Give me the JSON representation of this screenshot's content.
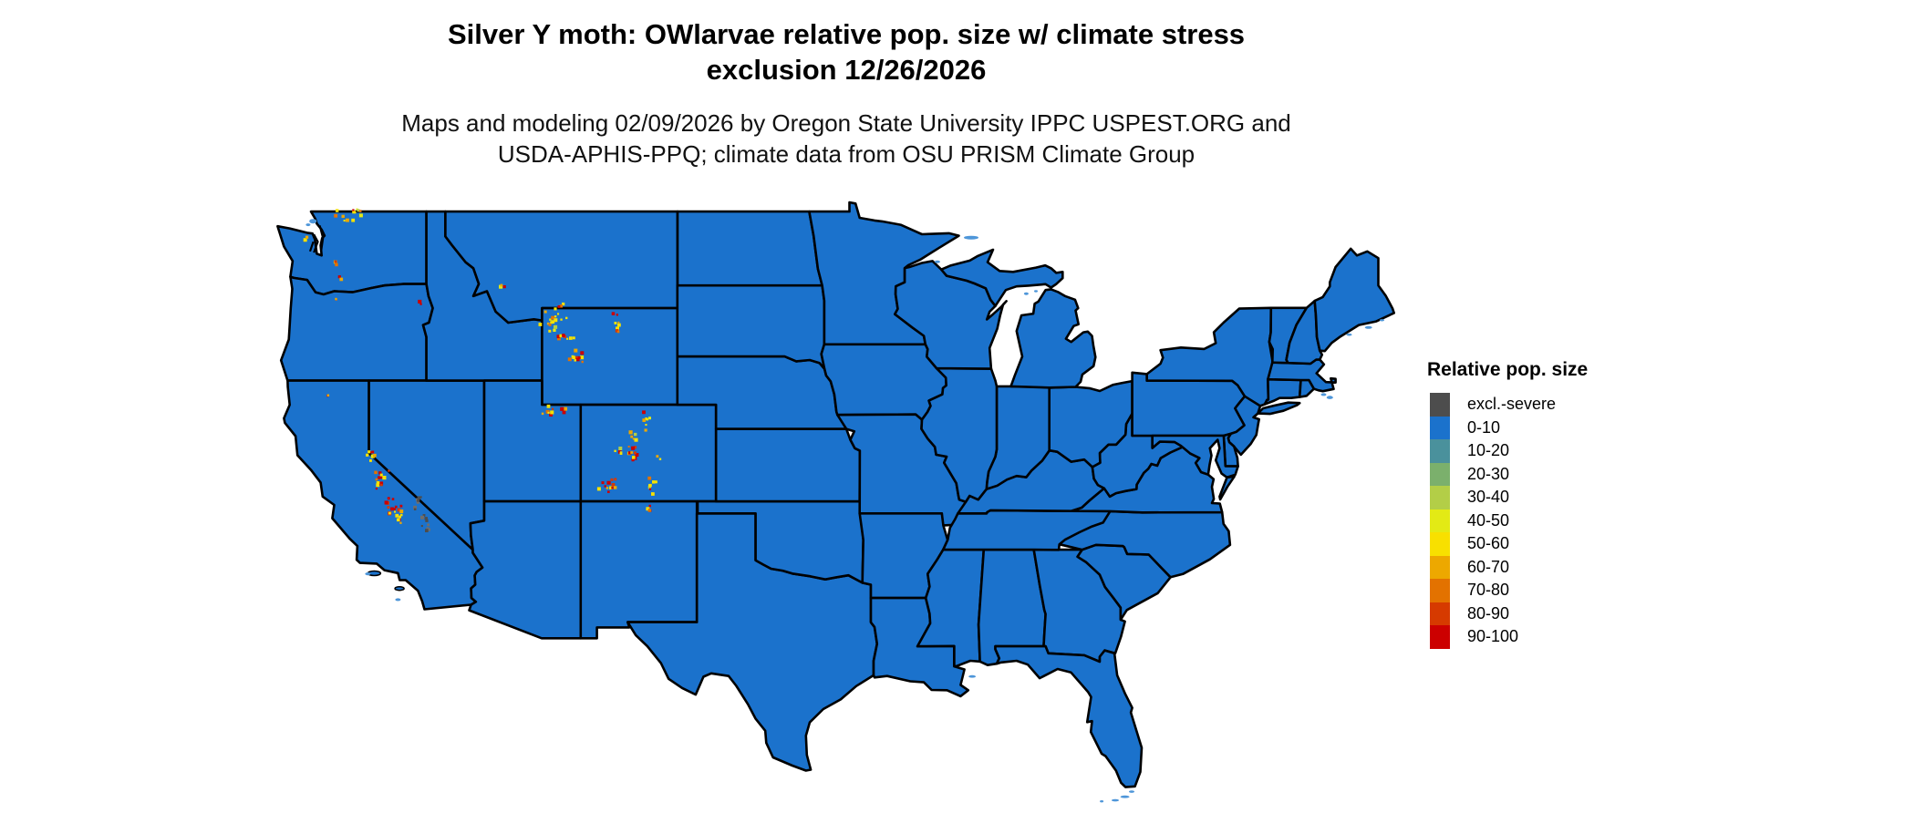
{
  "page": {
    "background": "#FFFFFF"
  },
  "header": {
    "title_line1": "Silver Y moth: OWlarvae relative pop. size w/ climate stress",
    "title_line2": "exclusion 12/26/2026",
    "subtitle_line1": "Maps and modeling 02/09/2026 by Oregon State University IPPC USPEST.ORG and",
    "subtitle_line2": "USDA-APHIS-PPQ; climate data from OSU PRISM Climate Group"
  },
  "legend": {
    "title": "Relative pop. size",
    "entries": [
      {
        "label": "excl.-severe",
        "color": "#4D4D4D"
      },
      {
        "label": "0-10",
        "color": "#1B72CC"
      },
      {
        "label": "10-20",
        "color": "#4A919C"
      },
      {
        "label": "20-30",
        "color": "#7BB06C"
      },
      {
        "label": "30-40",
        "color": "#B3CE47"
      },
      {
        "label": "40-50",
        "color": "#E3EA15"
      },
      {
        "label": "50-60",
        "color": "#F8E000"
      },
      {
        "label": "60-70",
        "color": "#EDA800"
      },
      {
        "label": "70-80",
        "color": "#E37200"
      },
      {
        "label": "80-90",
        "color": "#D63A00"
      },
      {
        "label": "90-100",
        "color": "#CC0000"
      }
    ]
  },
  "map": {
    "land_fill": "#1B72CC",
    "border_color": "#000000",
    "excluded_color": "#4D4D4D",
    "coast_fringe_color": "#4E96D9",
    "dominant_class": "0-10",
    "hotspots": [
      {
        "region": "North Cascades WA",
        "lon": -121.15,
        "lat": 48.82,
        "spread_lon": 0.5,
        "spread_lat": 0.28,
        "dots": 10,
        "palette": "hot"
      },
      {
        "region": "Okanogan Highlands WA",
        "lon": -120.65,
        "lat": 48.95,
        "spread_lon": 0.25,
        "spread_lat": 0.12,
        "dots": 4,
        "palette": "hot"
      },
      {
        "region": "Olympic Mtns WA",
        "lon": -123.35,
        "lat": 47.82,
        "spread_lon": 0.12,
        "spread_lat": 0.1,
        "dots": 3,
        "palette": "hot"
      },
      {
        "region": "Mt Rainier WA",
        "lon": -121.75,
        "lat": 46.85,
        "spread_lon": 0.1,
        "spread_lat": 0.07,
        "dots": 3,
        "palette": "red"
      },
      {
        "region": "Mt Adams WA",
        "lon": -121.5,
        "lat": 46.2,
        "spread_lon": 0.08,
        "spread_lat": 0.06,
        "dots": 2,
        "palette": "hot"
      },
      {
        "region": "Mt Hood OR",
        "lon": -121.7,
        "lat": 45.35,
        "spread_lon": 0.08,
        "spread_lat": 0.06,
        "dots": 2,
        "palette": "hot"
      },
      {
        "region": "Wallowa Mtns OR",
        "lon": -117.3,
        "lat": 45.25,
        "spread_lon": 0.12,
        "spread_lat": 0.1,
        "dots": 3,
        "palette": "hot"
      },
      {
        "region": "Mt Shasta CA",
        "lon": -122.2,
        "lat": 41.35,
        "spread_lon": 0.08,
        "spread_lat": 0.06,
        "dots": 2,
        "palette": "red"
      },
      {
        "region": "Sierra Nevada N CA",
        "lon": -120.0,
        "lat": 38.9,
        "spread_lon": 0.22,
        "spread_lat": 0.22,
        "dots": 8,
        "palette": "hot"
      },
      {
        "region": "Sierra Nevada C CA",
        "lon": -119.4,
        "lat": 37.9,
        "spread_lon": 0.26,
        "spread_lat": 0.3,
        "dots": 14,
        "palette": "red"
      },
      {
        "region": "Sierra Nevada S CA",
        "lon": -118.7,
        "lat": 36.8,
        "spread_lon": 0.26,
        "spread_lat": 0.35,
        "dots": 14,
        "palette": "red"
      },
      {
        "region": "Kern Plateau CA",
        "lon": -118.4,
        "lat": 36.3,
        "spread_lon": 0.18,
        "spread_lat": 0.18,
        "dots": 6,
        "palette": "hot"
      },
      {
        "region": "Death Valley excl. CA",
        "lon": -117.5,
        "lat": 36.9,
        "spread_lon": 0.2,
        "spread_lat": 0.28,
        "dots": 7,
        "palette": "gray"
      },
      {
        "region": "Panamint excl. CA",
        "lon": -117.15,
        "lat": 36.3,
        "spread_lon": 0.15,
        "spread_lat": 0.25,
        "dots": 6,
        "palette": "gray"
      },
      {
        "region": "Mojave excl. CA",
        "lon": -116.9,
        "lat": 35.85,
        "spread_lon": 0.15,
        "spread_lat": 0.15,
        "dots": 4,
        "palette": "gray"
      },
      {
        "region": "Anaconda Range MT",
        "lon": -113.1,
        "lat": 45.95,
        "spread_lon": 0.15,
        "spread_lat": 0.1,
        "dots": 3,
        "palette": "hot"
      },
      {
        "region": "Beartooth MT",
        "lon": -109.95,
        "lat": 45.2,
        "spread_lon": 0.15,
        "spread_lat": 0.1,
        "dots": 3,
        "palette": "hot"
      },
      {
        "region": "Yellowstone-Absaroka WY",
        "lon": -110.45,
        "lat": 44.5,
        "spread_lon": 0.5,
        "spread_lat": 0.38,
        "dots": 18,
        "palette": "hot"
      },
      {
        "region": "Absaroka S WY",
        "lon": -109.85,
        "lat": 43.8,
        "spread_lon": 0.3,
        "spread_lat": 0.25,
        "dots": 8,
        "palette": "red"
      },
      {
        "region": "Wind River Range WY",
        "lon": -109.3,
        "lat": 43.0,
        "spread_lon": 0.35,
        "spread_lat": 0.3,
        "dots": 11,
        "palette": "red"
      },
      {
        "region": "Bighorn Mtns WY",
        "lon": -107.2,
        "lat": 44.35,
        "spread_lon": 0.2,
        "spread_lat": 0.32,
        "dots": 8,
        "palette": "red"
      },
      {
        "region": "Uinta Mtns UT",
        "lon": -110.45,
        "lat": 40.78,
        "spread_lon": 0.5,
        "spread_lat": 0.13,
        "dots": 11,
        "palette": "red"
      },
      {
        "region": "Front Range CO",
        "lon": -105.75,
        "lat": 40.35,
        "spread_lon": 0.22,
        "spread_lat": 0.28,
        "dots": 8,
        "palette": "hot"
      },
      {
        "region": "Gore Range CO",
        "lon": -106.35,
        "lat": 39.65,
        "spread_lon": 0.18,
        "spread_lat": 0.18,
        "dots": 6,
        "palette": "hot"
      },
      {
        "region": "Sawatch Range CO",
        "lon": -106.35,
        "lat": 38.95,
        "spread_lon": 0.2,
        "spread_lat": 0.3,
        "dots": 11,
        "palette": "red"
      },
      {
        "region": "Elk Mtns CO",
        "lon": -107.1,
        "lat": 39.05,
        "spread_lon": 0.18,
        "spread_lat": 0.15,
        "dots": 5,
        "palette": "hot"
      },
      {
        "region": "San Juan Mtns CO",
        "lon": -107.55,
        "lat": 37.7,
        "spread_lon": 0.38,
        "spread_lat": 0.28,
        "dots": 13,
        "palette": "red"
      },
      {
        "region": "Sangre de Cristo CO",
        "lon": -105.35,
        "lat": 37.75,
        "spread_lon": 0.17,
        "spread_lat": 0.3,
        "dots": 8,
        "palette": "hot"
      },
      {
        "region": "Pikes Peak CO",
        "lon": -105.05,
        "lat": 38.85,
        "spread_lon": 0.08,
        "spread_lat": 0.08,
        "dots": 2,
        "palette": "hot"
      },
      {
        "region": "Taos Mtns NM",
        "lon": -105.45,
        "lat": 36.65,
        "spread_lon": 0.13,
        "spread_lat": 0.15,
        "dots": 4,
        "palette": "hot"
      }
    ]
  }
}
